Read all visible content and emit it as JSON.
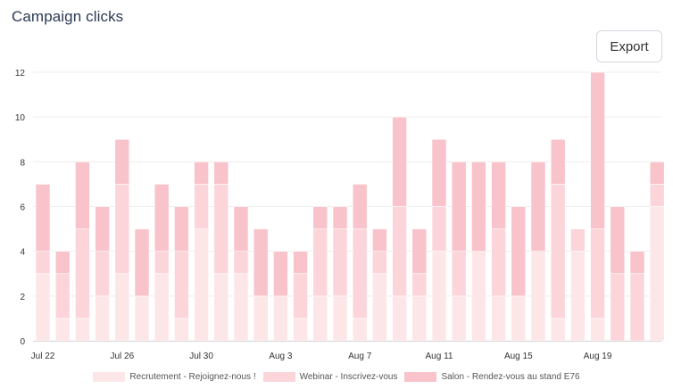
{
  "header": {
    "title": "Campaign clicks",
    "export_label": "Export"
  },
  "colors": {
    "recrutement": "#fde6e8",
    "webinar": "#fcd5da",
    "salon": "#f8c3ca",
    "grid": "#eeeeee",
    "axis_text": "#333333"
  },
  "chart_data": {
    "type": "bar",
    "stacked": true,
    "x_tick_labels": [
      "Jul 22",
      "Jul 26",
      "Jul 30",
      "Aug 3",
      "Aug 7",
      "Aug 11",
      "Aug 15",
      "Aug 19"
    ],
    "categories": [
      "Jul 22",
      "Jul 23",
      "Jul 24",
      "Jul 25",
      "Jul 26",
      "Jul 27",
      "Jul 28",
      "Jul 29",
      "Jul 30",
      "Jul 31",
      "Aug 1",
      "Aug 2",
      "Aug 3",
      "Aug 4",
      "Aug 5",
      "Aug 6",
      "Aug 7",
      "Aug 8",
      "Aug 9",
      "Aug 10",
      "Aug 11",
      "Aug 12",
      "Aug 13",
      "Aug 14",
      "Aug 15",
      "Aug 16",
      "Aug 17",
      "Aug 18",
      "Aug 19",
      "Aug 20",
      "Aug 21",
      "Aug 22"
    ],
    "ylim": [
      0,
      12
    ],
    "yticks": [
      0,
      2,
      4,
      6,
      8,
      10,
      12
    ],
    "grid": true,
    "legend_position": "bottom",
    "series": [
      {
        "name": "Recrutement - Rejoignez-nous !",
        "values": [
          3,
          1,
          1,
          2,
          3,
          2,
          3,
          1,
          5,
          3,
          3,
          2,
          2,
          1,
          2,
          2,
          1,
          3,
          2,
          2,
          4,
          2,
          4,
          2,
          2,
          4,
          1,
          4,
          1,
          0,
          0,
          6
        ]
      },
      {
        "name": "Webinar - Inscrivez-vous",
        "values": [
          1,
          2,
          4,
          2,
          4,
          0,
          1,
          3,
          2,
          4,
          1,
          0,
          0,
          2,
          3,
          3,
          4,
          1,
          4,
          1,
          2,
          2,
          0,
          3,
          0,
          0,
          6,
          1,
          4,
          3,
          3,
          1
        ]
      },
      {
        "name": "Salon - Rendez-vous au stand E76",
        "values": [
          3,
          1,
          3,
          2,
          2,
          3,
          3,
          2,
          1,
          1,
          2,
          3,
          2,
          1,
          1,
          1,
          2,
          1,
          4,
          2,
          3,
          4,
          4,
          3,
          4,
          4,
          2,
          0,
          7,
          3,
          1,
          1
        ]
      }
    ]
  }
}
